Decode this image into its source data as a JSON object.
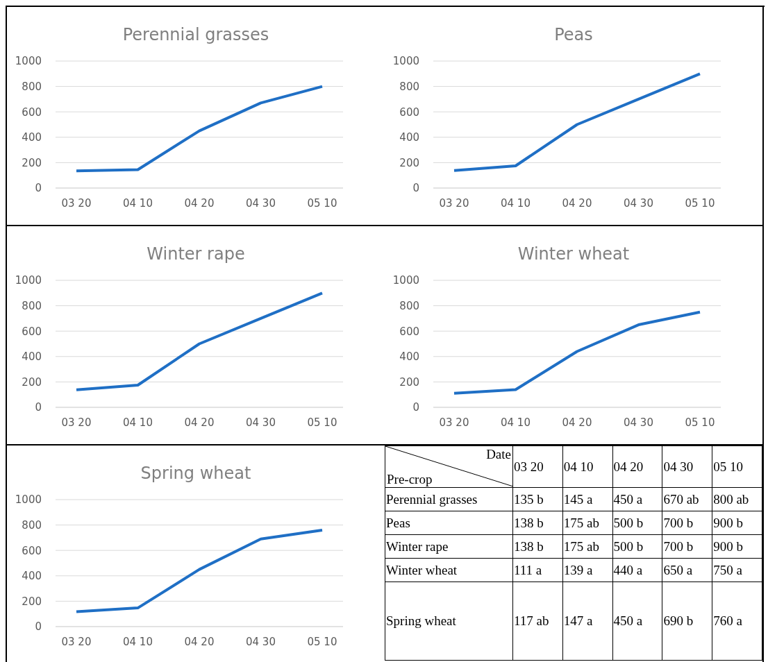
{
  "chart_data": [
    {
      "type": "line",
      "title": "Perennial grasses",
      "categories": [
        "03 20",
        "04 10",
        "04 20",
        "04 30",
        "05 10"
      ],
      "values": [
        135,
        145,
        450,
        670,
        800
      ],
      "color": "#1f6fc5",
      "ylim": [
        0,
        1000
      ],
      "yticks": [
        0,
        200,
        400,
        600,
        800,
        1000
      ],
      "grid": "y"
    },
    {
      "type": "line",
      "title": "Peas",
      "categories": [
        "03 20",
        "04 10",
        "04 20",
        "04 30",
        "05 10"
      ],
      "values": [
        138,
        175,
        500,
        700,
        900
      ],
      "color": "#1f6fc5",
      "ylim": [
        0,
        1000
      ],
      "yticks": [
        0,
        200,
        400,
        600,
        800,
        1000
      ],
      "grid": "y"
    },
    {
      "type": "line",
      "title": "Winter rape",
      "categories": [
        "03 20",
        "04 10",
        "04 20",
        "04 30",
        "05 10"
      ],
      "values": [
        138,
        175,
        500,
        700,
        900
      ],
      "color": "#1f6fc5",
      "ylim": [
        0,
        1000
      ],
      "yticks": [
        0,
        200,
        400,
        600,
        800,
        1000
      ],
      "grid": "y"
    },
    {
      "type": "line",
      "title": "Winter wheat",
      "categories": [
        "03 20",
        "04 10",
        "04 20",
        "04 30",
        "05 10"
      ],
      "values": [
        111,
        139,
        440,
        650,
        750
      ],
      "color": "#1f6fc5",
      "ylim": [
        0,
        1000
      ],
      "yticks": [
        0,
        200,
        400,
        600,
        800,
        1000
      ],
      "grid": "y"
    },
    {
      "type": "line",
      "title": "Spring wheat",
      "categories": [
        "03 20",
        "04 10",
        "04 20",
        "04 30",
        "05 10"
      ],
      "values": [
        117,
        147,
        450,
        690,
        760
      ],
      "color": "#1f6fc5",
      "ylim": [
        0,
        1000
      ],
      "yticks": [
        0,
        200,
        400,
        600,
        800,
        1000
      ],
      "grid": "y"
    },
    {
      "type": "heatmap",
      "xlabel": "Date",
      "ylabel": "Pre-crop",
      "categories": [
        "03 20",
        "04 10",
        "04 20",
        "04 30",
        "05 10"
      ],
      "y_categories": [
        "Perennial grasses",
        "Peas",
        "Winter rape",
        "Winter wheat",
        "Spring wheat"
      ],
      "cells": [
        [
          135,
          145,
          450,
          670,
          800
        ],
        [
          138,
          175,
          500,
          700,
          900
        ],
        [
          138,
          175,
          500,
          700,
          900
        ],
        [
          111,
          139,
          440,
          650,
          750
        ],
        [
          117,
          147,
          450,
          690,
          760
        ]
      ],
      "cell_labels": [
        [
          "135 b",
          "145 a",
          "450 a",
          "670 ab",
          "800 ab"
        ],
        [
          "138 b",
          "175 ab",
          "500 b",
          "700 b",
          "900 b"
        ],
        [
          "138 b",
          "175 ab",
          "500 b",
          "700 b",
          "900 b"
        ],
        [
          "111 a",
          "139 a",
          "440 a",
          "650 a",
          "750 a"
        ],
        [
          "117 ab",
          "147 a",
          "450 a",
          "690 b",
          "760 a"
        ]
      ]
    }
  ]
}
